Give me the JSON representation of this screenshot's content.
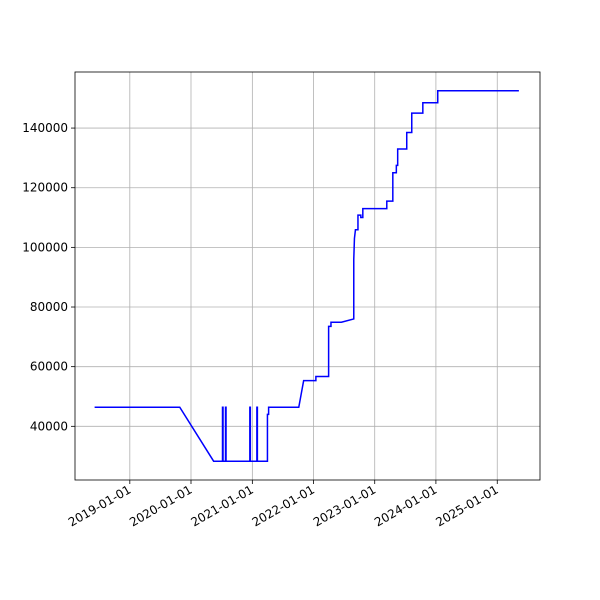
{
  "chart_data": {
    "type": "line",
    "x": [
      "2018-06-05",
      "2019-10-26",
      "2020-05-15",
      "2020-07-07",
      "2020-07-07",
      "2020-07-10",
      "2020-07-10",
      "2020-07-25",
      "2020-07-25",
      "2020-07-28",
      "2020-07-28",
      "2020-12-17",
      "2020-12-17",
      "2020-12-20",
      "2020-12-20",
      "2021-01-28",
      "2021-01-28",
      "2021-01-31",
      "2021-01-31",
      "2021-04-01",
      "2021-04-01",
      "2021-04-08",
      "2021-04-08",
      "2021-04-15",
      "2021-10-05",
      "2021-11-03",
      "2022-01-15",
      "2022-01-15",
      "2022-04-01",
      "2022-04-01",
      "2022-04-15",
      "2022-04-15",
      "2022-06-16",
      "2022-08-29",
      "2022-08-29",
      "2022-09-02",
      "2022-09-02",
      "2022-09-08",
      "2022-09-08",
      "2022-09-23",
      "2022-09-23",
      "2022-10-10",
      "2022-10-10",
      "2022-10-22",
      "2022-10-22",
      "2023-03-14",
      "2023-03-14",
      "2023-04-19",
      "2023-04-19",
      "2023-05-10",
      "2023-05-10",
      "2023-05-18",
      "2023-05-18",
      "2023-07-11",
      "2023-07-11",
      "2023-08-10",
      "2023-08-10",
      "2023-10-15",
      "2023-10-15",
      "2024-01-12",
      "2024-01-12",
      "2025-05-10"
    ],
    "series": [
      {
        "color": "#0000ff",
        "values": [
          46400,
          46400,
          28300,
          28300,
          46400,
          46400,
          28300,
          28300,
          46400,
          46400,
          28300,
          28300,
          46400,
          46400,
          28300,
          28300,
          46400,
          46400,
          28300,
          28300,
          44000,
          44000,
          46400,
          46400,
          46400,
          55300,
          55300,
          56700,
          56700,
          73500,
          73500,
          74900,
          74900,
          76000,
          96000,
          103000,
          103000,
          105900,
          105900,
          105900,
          110800,
          110800,
          110000,
          110000,
          113000,
          113000,
          115500,
          115500,
          125000,
          125000,
          127500,
          127500,
          133000,
          133000,
          138500,
          138500,
          145000,
          145000,
          148500,
          148500,
          152500,
          152500
        ]
      }
    ],
    "xlim": [
      "2018-02-08",
      "2025-09-13"
    ],
    "xticks": [
      "2019-01-01",
      "2020-01-01",
      "2021-01-01",
      "2022-01-01",
      "2023-01-01",
      "2024-01-01",
      "2025-01-01"
    ],
    "ylim": [
      22000,
      158800
    ],
    "yticks": [
      40000,
      60000,
      80000,
      100000,
      120000,
      140000
    ],
    "grid": true
  }
}
